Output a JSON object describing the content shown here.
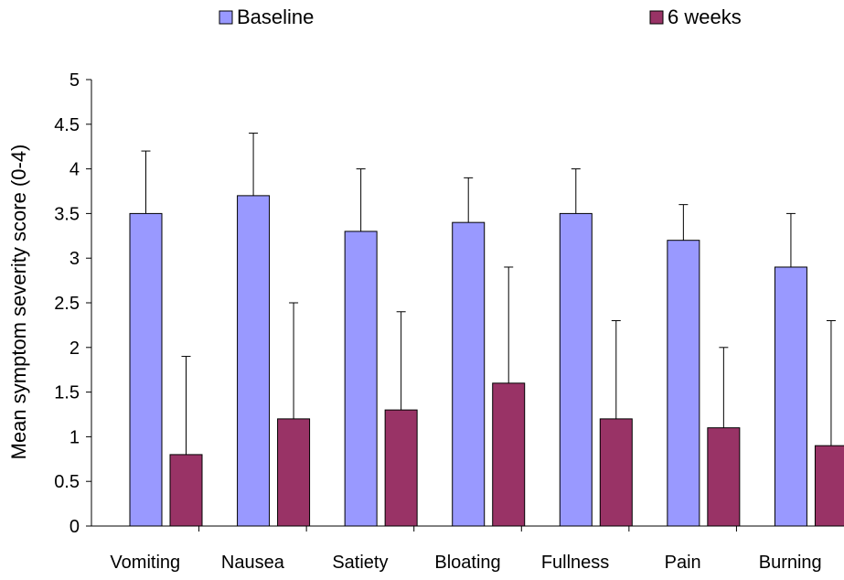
{
  "chart_data": {
    "type": "bar",
    "title": "",
    "xlabel": "",
    "ylabel": "Mean symptom severity score (0-4)",
    "ylim": [
      0,
      5
    ],
    "yticks": [
      "0",
      "0.5",
      "1",
      "1.5",
      "2",
      "2.5",
      "3",
      "3.5",
      "4",
      "4.5",
      "5"
    ],
    "grid": false,
    "legend_position": "top",
    "categories": [
      "Vomiting",
      "Nausea",
      "Satiety",
      "Bloating",
      "Fullness",
      "Pain",
      "Burning"
    ],
    "series": [
      {
        "name": "Baseline",
        "color": "#9999ff",
        "values": [
          3.5,
          3.7,
          3.3,
          3.4,
          3.5,
          3.2,
          2.9
        ],
        "error_upper": [
          0.7,
          0.7,
          0.7,
          0.5,
          0.5,
          0.4,
          0.6
        ]
      },
      {
        "name": "6 weeks",
        "color": "#993366",
        "values": [
          0.8,
          1.2,
          1.3,
          1.6,
          1.2,
          1.1,
          0.9
        ],
        "error_upper": [
          1.1,
          1.3,
          1.1,
          1.3,
          1.1,
          0.9,
          1.4
        ]
      }
    ]
  }
}
